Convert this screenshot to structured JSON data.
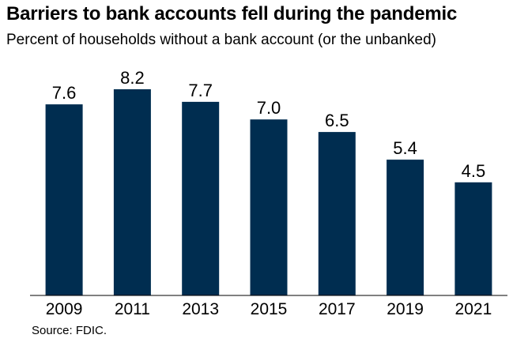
{
  "title": "Barriers to bank accounts fell during the pandemic",
  "subtitle": "Percent of households without a bank account (or the unbanked)",
  "source": "Source: FDIC.",
  "colors": {
    "bar": "#002d50",
    "axis": "#000000",
    "text": "#000000"
  },
  "chart_data": {
    "type": "bar",
    "categories": [
      "2009",
      "2011",
      "2013",
      "2015",
      "2017",
      "2019",
      "2021"
    ],
    "values": [
      7.6,
      8.2,
      7.7,
      7.0,
      6.5,
      5.4,
      4.5
    ],
    "value_labels": [
      "7.6",
      "8.2",
      "7.7",
      "7.0",
      "6.5",
      "5.4",
      "4.5"
    ],
    "title": "Barriers to bank accounts fell during the pandemic",
    "subtitle": "Percent of households without a bank account (or the unbanked)",
    "xlabel": "",
    "ylabel": "",
    "ylim": [
      0,
      8.2
    ],
    "grid": false,
    "legend": "none"
  }
}
